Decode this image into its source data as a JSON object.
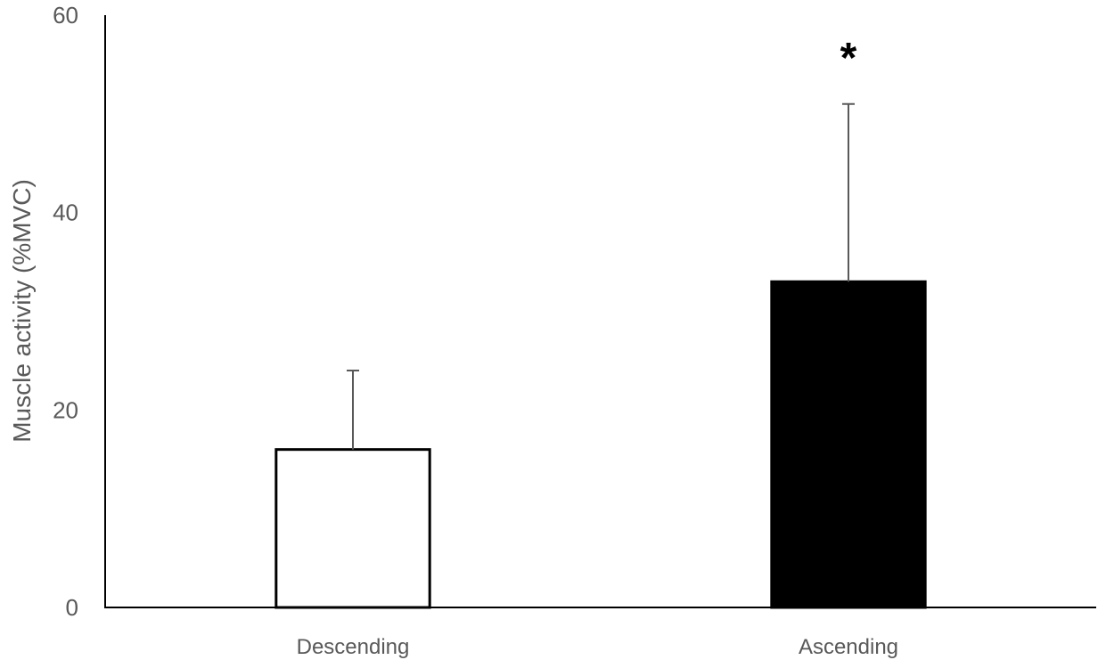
{
  "chart_data": {
    "type": "bar",
    "title": "",
    "xlabel": "",
    "ylabel": "Muscle activity (%MVC)",
    "ylim": [
      0,
      60
    ],
    "yticks": [
      0,
      20,
      40,
      60
    ],
    "grid": false,
    "legend": "none",
    "categories": [
      "Descending",
      "Ascending"
    ],
    "values": [
      16,
      33
    ],
    "error_plus": [
      8,
      18
    ],
    "bar_fill_colors": [
      "#ffffff",
      "#000000"
    ],
    "bar_stroke_color": "#000000",
    "error_bar_color": "#595959",
    "annotations": [
      {
        "category": "Ascending",
        "text": "*"
      }
    ]
  }
}
